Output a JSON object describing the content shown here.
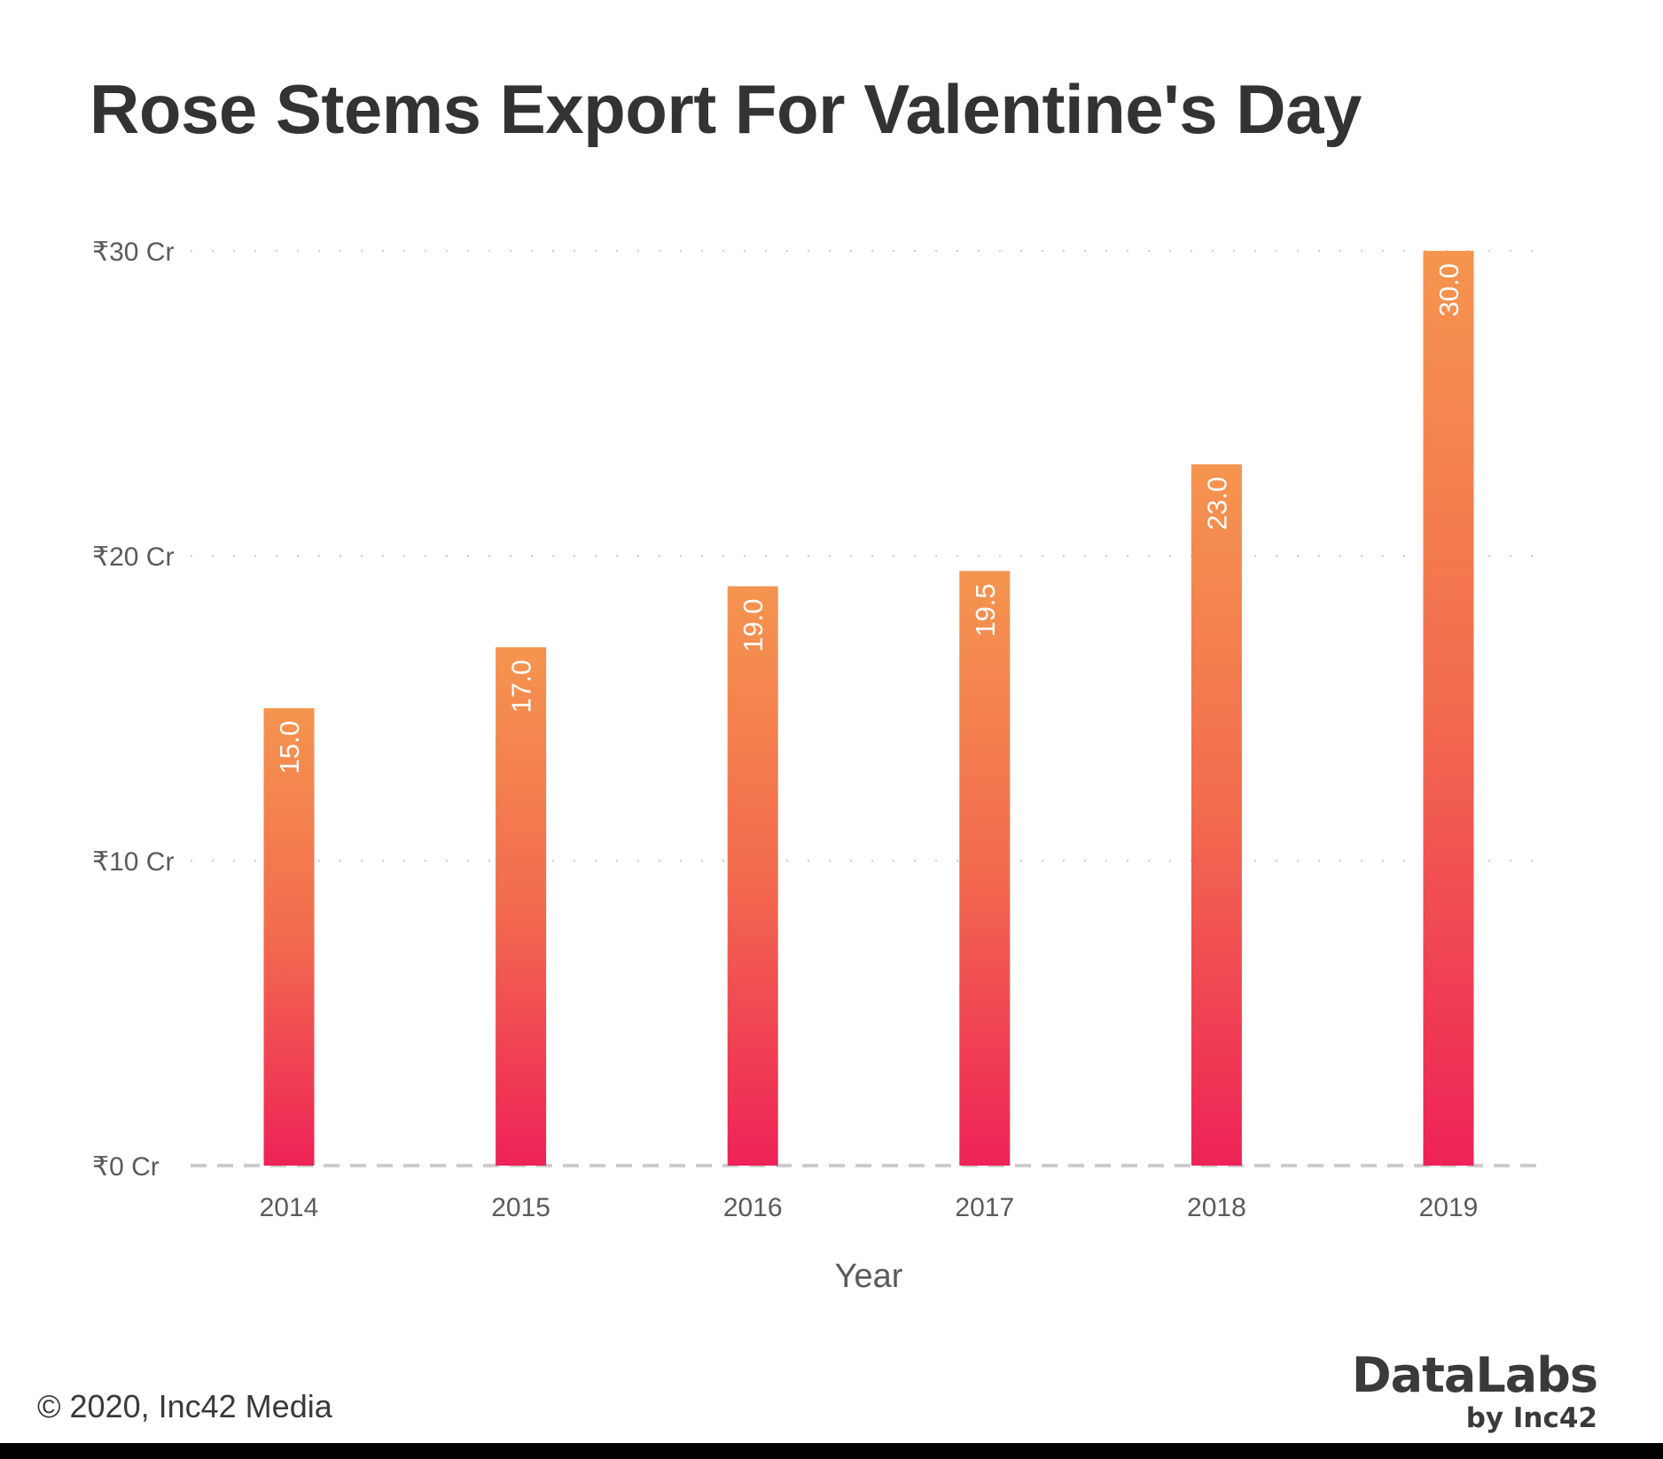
{
  "chart_data": {
    "type": "bar",
    "title": "Rose Stems Export For Valentine's Day",
    "xlabel": "Year",
    "ylabel": "",
    "categories": [
      "2014",
      "2015",
      "2016",
      "2017",
      "2018",
      "2019"
    ],
    "values": [
      15.0,
      17.0,
      19.0,
      19.5,
      23.0,
      30.0
    ],
    "data_labels": [
      "15.0",
      "17.0",
      "19.0",
      "19.5",
      "23.0",
      "30.0"
    ],
    "ylim": [
      0,
      30
    ],
    "y_ticks": [
      0,
      10,
      20,
      30
    ],
    "y_tick_labels": [
      "₹0 Cr",
      "₹10 Cr",
      "₹20 Cr",
      "₹30 Cr"
    ],
    "grid": true,
    "legend": "none",
    "colors": {
      "bar_top": "#F5954F",
      "bar_mid": "#F26B4E",
      "bar_bottom": "#EE2257",
      "grid": "#bbbbbb",
      "baseline": "#cccccc"
    }
  },
  "footer": {
    "copyright": "© 2020, Inc42 Media",
    "brand": "DataLabs",
    "brand_sub": "by Inc42"
  }
}
